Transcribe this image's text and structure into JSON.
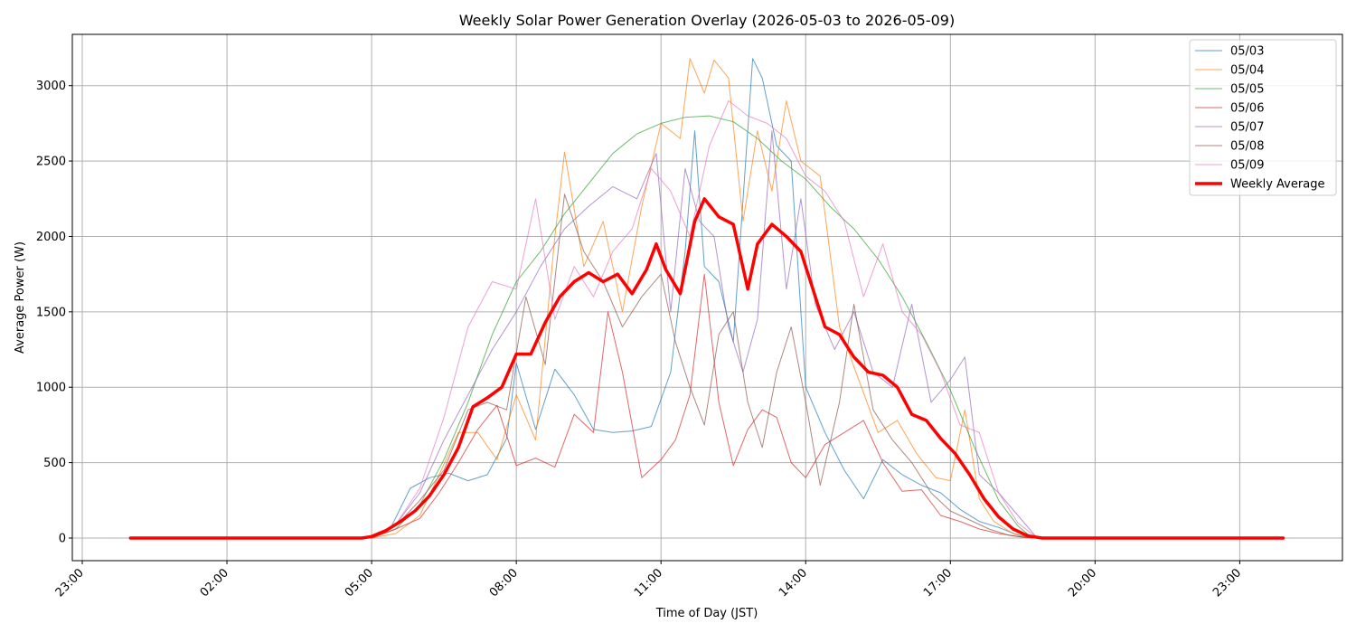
{
  "chart_data": {
    "type": "line",
    "title": "Weekly Solar Power Generation Overlay (2026-05-03 to 2026-05-09)",
    "xlabel": "Time of Day (JST)",
    "ylabel": "Average Power (W)",
    "x_tick_labels": [
      "23:00",
      "02:00",
      "05:00",
      "08:00",
      "11:00",
      "14:00",
      "17:00",
      "20:00",
      "23:00"
    ],
    "y_ticks": [
      0,
      500,
      1000,
      1500,
      2000,
      2500,
      3000
    ],
    "ylim": [
      -150,
      3340
    ],
    "grid": true,
    "legend_position": "top-right",
    "series": [
      {
        "name": "05/03",
        "color": "#1f77b4",
        "points": [
          [
            5.0,
            0
          ],
          [
            5.4,
            70
          ],
          [
            5.8,
            330
          ],
          [
            6.2,
            400
          ],
          [
            6.6,
            430
          ],
          [
            7.0,
            380
          ],
          [
            7.4,
            420
          ],
          [
            7.8,
            660
          ],
          [
            8.0,
            1160
          ],
          [
            8.4,
            720
          ],
          [
            8.8,
            1120
          ],
          [
            9.2,
            950
          ],
          [
            9.6,
            720
          ],
          [
            10.0,
            700
          ],
          [
            10.4,
            710
          ],
          [
            10.8,
            740
          ],
          [
            11.2,
            1100
          ],
          [
            11.5,
            1900
          ],
          [
            11.7,
            2700
          ],
          [
            11.9,
            1800
          ],
          [
            12.2,
            1700
          ],
          [
            12.5,
            1300
          ],
          [
            12.9,
            3180
          ],
          [
            13.1,
            3050
          ],
          [
            13.4,
            2600
          ],
          [
            13.7,
            2500
          ],
          [
            14.0,
            1000
          ],
          [
            14.4,
            700
          ],
          [
            14.8,
            450
          ],
          [
            15.2,
            260
          ],
          [
            15.6,
            520
          ],
          [
            16.0,
            420
          ],
          [
            16.4,
            350
          ],
          [
            16.8,
            300
          ],
          [
            17.2,
            190
          ],
          [
            17.6,
            110
          ],
          [
            18.0,
            70
          ],
          [
            18.4,
            20
          ],
          [
            18.7,
            0
          ]
        ]
      },
      {
        "name": "05/04",
        "color": "#ff7f0e",
        "points": [
          [
            5.0,
            0
          ],
          [
            5.5,
            30
          ],
          [
            6.0,
            150
          ],
          [
            6.4,
            420
          ],
          [
            6.8,
            700
          ],
          [
            7.2,
            700
          ],
          [
            7.6,
            520
          ],
          [
            8.0,
            950
          ],
          [
            8.4,
            650
          ],
          [
            8.8,
            2000
          ],
          [
            9.0,
            2560
          ],
          [
            9.4,
            1800
          ],
          [
            9.8,
            2100
          ],
          [
            10.2,
            1500
          ],
          [
            10.6,
            2200
          ],
          [
            11.0,
            2750
          ],
          [
            11.4,
            2650
          ],
          [
            11.6,
            3180
          ],
          [
            11.9,
            2950
          ],
          [
            12.1,
            3170
          ],
          [
            12.4,
            3050
          ],
          [
            12.7,
            2100
          ],
          [
            13.0,
            2700
          ],
          [
            13.3,
            2300
          ],
          [
            13.6,
            2900
          ],
          [
            13.9,
            2500
          ],
          [
            14.3,
            2400
          ],
          [
            14.7,
            1400
          ],
          [
            15.1,
            1050
          ],
          [
            15.5,
            700
          ],
          [
            15.9,
            780
          ],
          [
            16.3,
            560
          ],
          [
            16.7,
            400
          ],
          [
            17.0,
            380
          ],
          [
            17.3,
            850
          ],
          [
            17.6,
            260
          ],
          [
            17.9,
            110
          ],
          [
            18.3,
            30
          ],
          [
            18.7,
            0
          ]
        ]
      },
      {
        "name": "05/05",
        "color": "#2ca02c",
        "points": [
          [
            5.0,
            0
          ],
          [
            5.5,
            60
          ],
          [
            6.0,
            220
          ],
          [
            6.5,
            520
          ],
          [
            7.0,
            900
          ],
          [
            7.5,
            1350
          ],
          [
            8.0,
            1700
          ],
          [
            8.5,
            1900
          ],
          [
            9.0,
            2150
          ],
          [
            9.5,
            2350
          ],
          [
            10.0,
            2550
          ],
          [
            10.5,
            2680
          ],
          [
            11.0,
            2750
          ],
          [
            11.5,
            2790
          ],
          [
            12.0,
            2800
          ],
          [
            12.5,
            2760
          ],
          [
            13.0,
            2650
          ],
          [
            13.5,
            2500
          ],
          [
            14.0,
            2380
          ],
          [
            14.5,
            2200
          ],
          [
            15.0,
            2050
          ],
          [
            15.5,
            1850
          ],
          [
            16.0,
            1600
          ],
          [
            16.5,
            1300
          ],
          [
            17.0,
            980
          ],
          [
            17.5,
            600
          ],
          [
            18.0,
            250
          ],
          [
            18.4,
            80
          ],
          [
            18.7,
            0
          ]
        ]
      },
      {
        "name": "05/06",
        "color": "#d62728",
        "points": [
          [
            5.0,
            0
          ],
          [
            5.5,
            60
          ],
          [
            6.0,
            130
          ],
          [
            6.4,
            300
          ],
          [
            6.8,
            500
          ],
          [
            7.2,
            720
          ],
          [
            7.6,
            880
          ],
          [
            8.0,
            480
          ],
          [
            8.4,
            530
          ],
          [
            8.8,
            470
          ],
          [
            9.2,
            820
          ],
          [
            9.6,
            700
          ],
          [
            9.9,
            1500
          ],
          [
            10.2,
            1100
          ],
          [
            10.6,
            400
          ],
          [
            11.0,
            520
          ],
          [
            11.3,
            650
          ],
          [
            11.6,
            950
          ],
          [
            11.9,
            1750
          ],
          [
            12.2,
            900
          ],
          [
            12.5,
            480
          ],
          [
            12.8,
            720
          ],
          [
            13.1,
            850
          ],
          [
            13.4,
            800
          ],
          [
            13.7,
            500
          ],
          [
            14.0,
            400
          ],
          [
            14.4,
            620
          ],
          [
            14.8,
            700
          ],
          [
            15.2,
            780
          ],
          [
            15.6,
            500
          ],
          [
            16.0,
            310
          ],
          [
            16.4,
            320
          ],
          [
            16.8,
            150
          ],
          [
            17.2,
            110
          ],
          [
            17.6,
            60
          ],
          [
            18.0,
            30
          ],
          [
            18.4,
            10
          ],
          [
            18.7,
            0
          ]
        ]
      },
      {
        "name": "05/07",
        "color": "#9467bd",
        "points": [
          [
            5.0,
            0
          ],
          [
            5.5,
            90
          ],
          [
            6.0,
            300
          ],
          [
            6.5,
            650
          ],
          [
            7.0,
            950
          ],
          [
            7.5,
            1250
          ],
          [
            8.0,
            1500
          ],
          [
            8.5,
            1800
          ],
          [
            9.0,
            2050
          ],
          [
            9.5,
            2200
          ],
          [
            10.0,
            2330
          ],
          [
            10.5,
            2250
          ],
          [
            10.9,
            2550
          ],
          [
            11.2,
            1500
          ],
          [
            11.5,
            2450
          ],
          [
            11.8,
            2100
          ],
          [
            12.1,
            2000
          ],
          [
            12.4,
            1400
          ],
          [
            12.7,
            1100
          ],
          [
            13.0,
            1450
          ],
          [
            13.3,
            2700
          ],
          [
            13.6,
            1650
          ],
          [
            13.9,
            2250
          ],
          [
            14.2,
            1550
          ],
          [
            14.6,
            1250
          ],
          [
            15.0,
            1500
          ],
          [
            15.4,
            1100
          ],
          [
            15.8,
            1000
          ],
          [
            16.2,
            1550
          ],
          [
            16.6,
            900
          ],
          [
            17.0,
            1050
          ],
          [
            17.3,
            1200
          ],
          [
            17.6,
            420
          ],
          [
            18.0,
            300
          ],
          [
            18.4,
            150
          ],
          [
            18.8,
            0
          ]
        ]
      },
      {
        "name": "05/08",
        "color": "#8c564b",
        "points": [
          [
            5.0,
            0
          ],
          [
            5.5,
            80
          ],
          [
            6.0,
            250
          ],
          [
            6.5,
            450
          ],
          [
            7.0,
            850
          ],
          [
            7.4,
            900
          ],
          [
            7.8,
            850
          ],
          [
            8.2,
            1600
          ],
          [
            8.6,
            1150
          ],
          [
            9.0,
            2280
          ],
          [
            9.4,
            1900
          ],
          [
            9.8,
            1700
          ],
          [
            10.2,
            1400
          ],
          [
            10.6,
            1600
          ],
          [
            11.0,
            1750
          ],
          [
            11.3,
            1300
          ],
          [
            11.6,
            1000
          ],
          [
            11.9,
            750
          ],
          [
            12.2,
            1350
          ],
          [
            12.5,
            1500
          ],
          [
            12.8,
            900
          ],
          [
            13.1,
            600
          ],
          [
            13.4,
            1100
          ],
          [
            13.7,
            1400
          ],
          [
            14.0,
            900
          ],
          [
            14.3,
            350
          ],
          [
            14.7,
            900
          ],
          [
            15.0,
            1550
          ],
          [
            15.4,
            850
          ],
          [
            15.8,
            650
          ],
          [
            16.2,
            500
          ],
          [
            16.6,
            300
          ],
          [
            17.0,
            180
          ],
          [
            17.4,
            120
          ],
          [
            17.8,
            60
          ],
          [
            18.2,
            20
          ],
          [
            18.6,
            0
          ]
        ]
      },
      {
        "name": "05/09",
        "color": "#e377c2",
        "points": [
          [
            5.0,
            0
          ],
          [
            5.5,
            90
          ],
          [
            6.0,
            330
          ],
          [
            6.5,
            800
          ],
          [
            7.0,
            1400
          ],
          [
            7.5,
            1700
          ],
          [
            8.0,
            1650
          ],
          [
            8.4,
            2250
          ],
          [
            8.8,
            1450
          ],
          [
            9.2,
            1800
          ],
          [
            9.6,
            1600
          ],
          [
            10.0,
            1900
          ],
          [
            10.4,
            2050
          ],
          [
            10.8,
            2450
          ],
          [
            11.2,
            2300
          ],
          [
            11.6,
            2000
          ],
          [
            12.0,
            2600
          ],
          [
            12.4,
            2900
          ],
          [
            12.8,
            2800
          ],
          [
            13.2,
            2750
          ],
          [
            13.6,
            2650
          ],
          [
            14.0,
            2400
          ],
          [
            14.4,
            2300
          ],
          [
            14.8,
            2100
          ],
          [
            15.2,
            1600
          ],
          [
            15.6,
            1950
          ],
          [
            16.0,
            1500
          ],
          [
            16.4,
            1350
          ],
          [
            16.8,
            1100
          ],
          [
            17.2,
            750
          ],
          [
            17.6,
            700
          ],
          [
            18.0,
            300
          ],
          [
            18.4,
            100
          ],
          [
            18.8,
            0
          ]
        ]
      },
      {
        "name": "Weekly Average",
        "color": "#ff0000",
        "points": [
          [
            0.0,
            0
          ],
          [
            4.8,
            0
          ],
          [
            5.0,
            10
          ],
          [
            5.3,
            50
          ],
          [
            5.6,
            110
          ],
          [
            5.9,
            180
          ],
          [
            6.2,
            280
          ],
          [
            6.5,
            420
          ],
          [
            6.8,
            600
          ],
          [
            7.1,
            870
          ],
          [
            7.4,
            930
          ],
          [
            7.7,
            1000
          ],
          [
            8.0,
            1220
          ],
          [
            8.3,
            1220
          ],
          [
            8.6,
            1430
          ],
          [
            8.9,
            1600
          ],
          [
            9.2,
            1700
          ],
          [
            9.5,
            1760
          ],
          [
            9.8,
            1700
          ],
          [
            10.1,
            1750
          ],
          [
            10.4,
            1620
          ],
          [
            10.7,
            1780
          ],
          [
            10.9,
            1950
          ],
          [
            11.1,
            1780
          ],
          [
            11.4,
            1620
          ],
          [
            11.7,
            2100
          ],
          [
            11.9,
            2250
          ],
          [
            12.2,
            2130
          ],
          [
            12.5,
            2080
          ],
          [
            12.8,
            1650
          ],
          [
            13.0,
            1950
          ],
          [
            13.3,
            2080
          ],
          [
            13.6,
            2000
          ],
          [
            13.9,
            1900
          ],
          [
            14.1,
            1700
          ],
          [
            14.4,
            1400
          ],
          [
            14.7,
            1350
          ],
          [
            15.0,
            1200
          ],
          [
            15.3,
            1100
          ],
          [
            15.6,
            1080
          ],
          [
            15.9,
            1000
          ],
          [
            16.2,
            820
          ],
          [
            16.5,
            780
          ],
          [
            16.8,
            660
          ],
          [
            17.1,
            560
          ],
          [
            17.4,
            420
          ],
          [
            17.7,
            260
          ],
          [
            18.0,
            140
          ],
          [
            18.3,
            60
          ],
          [
            18.6,
            15
          ],
          [
            18.9,
            0
          ],
          [
            23.9,
            0
          ]
        ]
      }
    ]
  }
}
